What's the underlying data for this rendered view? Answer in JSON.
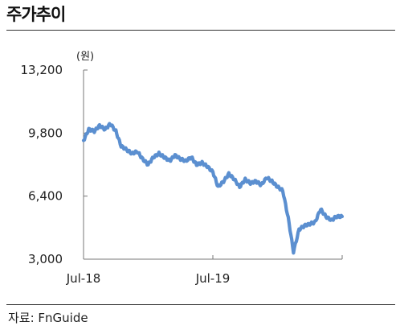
{
  "header": {
    "title": "주가추이"
  },
  "footer": {
    "source": "자료: FnGuide"
  },
  "chart_data": {
    "type": "line",
    "unit_label": "(원)",
    "ylim": [
      3000,
      13200
    ],
    "yticks": [
      "13,200",
      "9,800",
      "6,400",
      "3,000"
    ],
    "ytick_values": [
      13200,
      9800,
      6400,
      3000
    ],
    "xticks": [
      "Jul-18",
      "Jul-19"
    ],
    "xlim": [
      "2018-07",
      "2020-07"
    ],
    "xtick_positions": [
      "2018-07",
      "2019-07"
    ],
    "grid": false,
    "series": [
      {
        "color": "#5b8fd0",
        "x": [
          "2018-07",
          "2018-07",
          "2018-08",
          "2018-08",
          "2018-09",
          "2018-09",
          "2018-10",
          "2018-10",
          "2018-11",
          "2018-11",
          "2018-12",
          "2018-12",
          "2019-01",
          "2019-01",
          "2019-02",
          "2019-02",
          "2019-03",
          "2019-03",
          "2019-04",
          "2019-04",
          "2019-05",
          "2019-05",
          "2019-06",
          "2019-06",
          "2019-07",
          "2019-07",
          "2019-08",
          "2019-08",
          "2019-09",
          "2019-09",
          "2019-10",
          "2019-10",
          "2019-11",
          "2019-11",
          "2019-12",
          "2019-12",
          "2020-01",
          "2020-01",
          "2020-02",
          "2020-02",
          "2020-03",
          "2020-03",
          "2020-04",
          "2020-04",
          "2020-05",
          "2020-05",
          "2020-06",
          "2020-06",
          "2020-07"
        ],
        "y": [
          9400,
          10000,
          9900,
          10200,
          10000,
          10300,
          9900,
          9100,
          8900,
          8700,
          8800,
          8400,
          8100,
          8500,
          8700,
          8500,
          8300,
          8600,
          8400,
          8300,
          8500,
          8100,
          8200,
          8000,
          7700,
          6900,
          7200,
          7600,
          7300,
          6900,
          7300,
          7100,
          7200,
          7000,
          7400,
          7200,
          6900,
          6700,
          5200,
          3400,
          4600,
          4800,
          4900,
          5000,
          5700,
          5300,
          5100,
          5300,
          5300
        ]
      }
    ]
  }
}
